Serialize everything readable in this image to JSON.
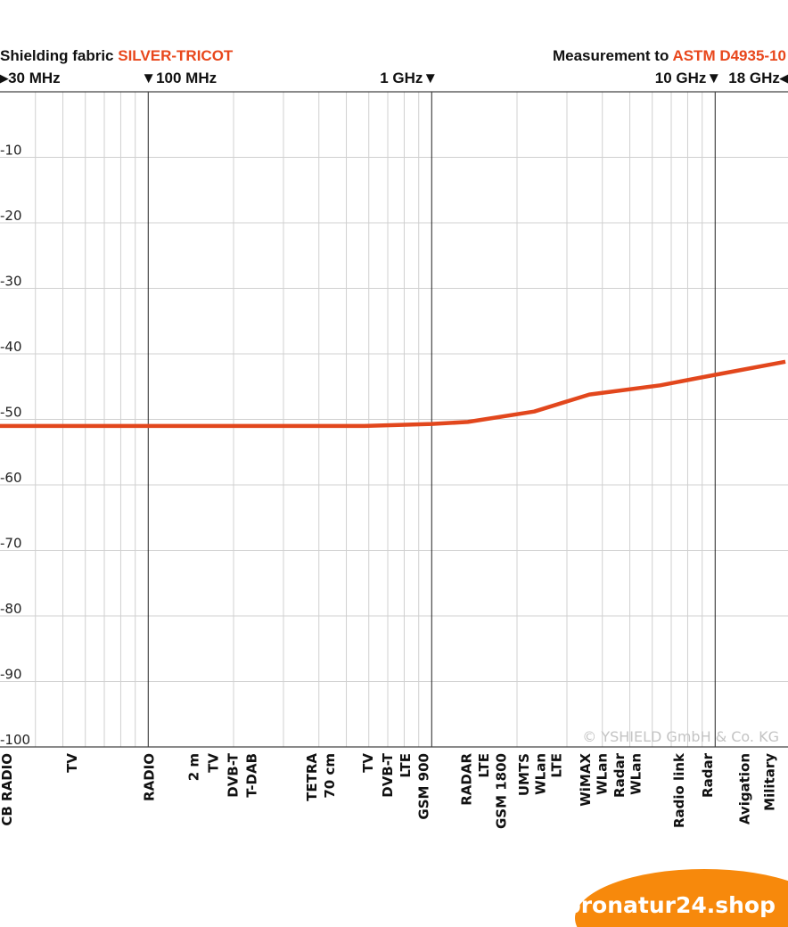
{
  "header": {
    "left_prefix": "Shielding fabric ",
    "left_product": "SILVER-TRICOT",
    "right_prefix": "Measurement to ",
    "right_standard": "ASTM D4935-10"
  },
  "freq_markers": [
    {
      "label": "▶30 MHz",
      "freq_mhz": 30
    },
    {
      "label": "▼100 MHz",
      "freq_mhz": 100
    },
    {
      "label": "1 GHz▼",
      "freq_mhz": 1000
    },
    {
      "label": "10 GHz▼",
      "freq_mhz": 10000
    },
    {
      "label": "18 GHz◀",
      "freq_mhz": 18000
    }
  ],
  "watermark": "© YSHIELD GmbH & Co. KG",
  "logo": "pronatur24.shop",
  "colors": {
    "accent": "#e8471c",
    "line": "#e2471d",
    "logo": "#f7890c"
  },
  "chart_data": {
    "type": "line",
    "x_scale": "log",
    "xlim_mhz": [
      30,
      18000
    ],
    "ylim": [
      -100,
      0
    ],
    "grid": true,
    "y_ticks": [
      "-10",
      "-20",
      "-30",
      "-40",
      "-50",
      "-60",
      "-70",
      "-80",
      "-90",
      "-100"
    ],
    "series": [
      {
        "x_mhz": [
          30,
          580,
          1000,
          1340,
          2300,
          3600,
          6400,
          10000,
          17700
        ],
        "y_db": [
          -51,
          -51,
          -50.7,
          -50.4,
          -48.8,
          -46.2,
          -44.8,
          -43.2,
          -41.2
        ]
      }
    ],
    "band_labels": [
      {
        "text": "CB RADIO",
        "freq_mhz": 31.8
      },
      {
        "text": "TV",
        "freq_mhz": 54
      },
      {
        "text": "RADIO",
        "freq_mhz": 101
      },
      {
        "text": "2 m",
        "freq_mhz": 145
      },
      {
        "text": "TV",
        "freq_mhz": 170
      },
      {
        "text": "DVB-T",
        "freq_mhz": 199
      },
      {
        "text": "T-DAB",
        "freq_mhz": 232
      },
      {
        "text": "TETRA",
        "freq_mhz": 378
      },
      {
        "text": "70 cm",
        "freq_mhz": 437
      },
      {
        "text": "TV",
        "freq_mhz": 596
      },
      {
        "text": "DVB-T",
        "freq_mhz": 700
      },
      {
        "text": "LTE",
        "freq_mhz": 809
      },
      {
        "text": "GSM 900",
        "freq_mhz": 940
      },
      {
        "text": "RADAR",
        "freq_mhz": 1330
      },
      {
        "text": "LTE",
        "freq_mhz": 1530
      },
      {
        "text": "GSM 1800",
        "freq_mhz": 1760
      },
      {
        "text": "UMTS",
        "freq_mhz": 2120
      },
      {
        "text": "WLan",
        "freq_mhz": 2420
      },
      {
        "text": "LTE",
        "freq_mhz": 2760
      },
      {
        "text": "WiMAX",
        "freq_mhz": 3490
      },
      {
        "text": "WLan",
        "freq_mhz": 4000
      },
      {
        "text": "Radar",
        "freq_mhz": 4600
      },
      {
        "text": "WLan",
        "freq_mhz": 5250
      },
      {
        "text": "Radio link",
        "freq_mhz": 7480
      },
      {
        "text": "Radar",
        "freq_mhz": 9430
      },
      {
        "text": "Avigation",
        "freq_mhz": 12700
      },
      {
        "text": "Military",
        "freq_mhz": 15600
      }
    ]
  }
}
